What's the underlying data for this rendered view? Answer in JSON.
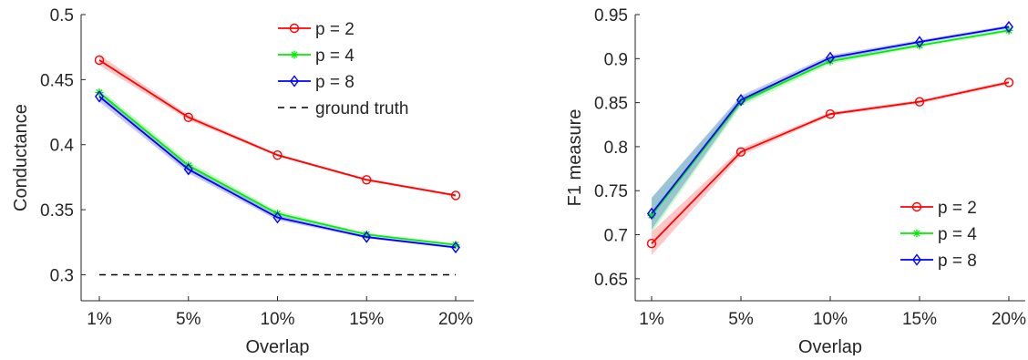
{
  "chart_data": [
    {
      "type": "line",
      "xlabel": "Overlap",
      "ylabel": "Conductance",
      "categories": [
        "1%",
        "5%",
        "10%",
        "15%",
        "20%"
      ],
      "ylim": [
        0.28,
        0.5
      ],
      "yticks": [
        "0.3",
        "0.35",
        "0.4",
        "0.45",
        "0.5"
      ],
      "ytick_values": [
        0.3,
        0.35,
        0.4,
        0.45,
        0.5
      ],
      "grid": false,
      "legend_position": "top-right",
      "series": [
        {
          "name": "p = 2",
          "color": "#ff0000",
          "marker": "circle",
          "values": [
            0.465,
            0.421,
            0.392,
            0.373,
            0.361
          ],
          "band": [
            0.004,
            0.002,
            0.001,
            0.001,
            0.001
          ]
        },
        {
          "name": "p = 4",
          "color": "#00ee00",
          "marker": "star",
          "values": [
            0.44,
            0.384,
            0.347,
            0.331,
            0.323
          ],
          "band": [
            0.003,
            0.003,
            0.002,
            0.001,
            0.001
          ]
        },
        {
          "name": "p = 8",
          "color": "#0000ff",
          "marker": "diamond",
          "values": [
            0.437,
            0.381,
            0.344,
            0.329,
            0.321
          ],
          "band": [
            0.004,
            0.003,
            0.002,
            0.001,
            0.001
          ]
        }
      ],
      "reference_lines": [
        {
          "name": "ground truth",
          "value": 0.3,
          "color": "#000000",
          "style": "dashed"
        }
      ]
    },
    {
      "type": "line",
      "xlabel": "Overlap",
      "ylabel": "F1 measure",
      "categories": [
        "1%",
        "5%",
        "10%",
        "15%",
        "20%"
      ],
      "ylim": [
        0.625,
        0.95
      ],
      "yticks": [
        "0.65",
        "0.7",
        "0.75",
        "0.8",
        "0.85",
        "0.9",
        "0.95"
      ],
      "ytick_values": [
        0.65,
        0.7,
        0.75,
        0.8,
        0.85,
        0.9,
        0.95
      ],
      "grid": false,
      "legend_position": "bottom-right",
      "series": [
        {
          "name": "p = 2",
          "color": "#ff0000",
          "marker": "circle",
          "values": [
            0.69,
            0.794,
            0.837,
            0.851,
            0.873
          ],
          "band": [
            0.013,
            0.004,
            0.002,
            0.002,
            0.002
          ]
        },
        {
          "name": "p = 4",
          "color": "#00ee00",
          "marker": "star",
          "values": [
            0.722,
            0.851,
            0.897,
            0.915,
            0.932
          ],
          "band": [
            0.02,
            0.005,
            0.003,
            0.002,
            0.002
          ]
        },
        {
          "name": "p = 8",
          "color": "#0000ff",
          "marker": "diamond",
          "values": [
            0.724,
            0.853,
            0.901,
            0.919,
            0.936
          ],
          "band": [
            0.018,
            0.005,
            0.003,
            0.002,
            0.002
          ]
        }
      ],
      "reference_lines": []
    }
  ]
}
